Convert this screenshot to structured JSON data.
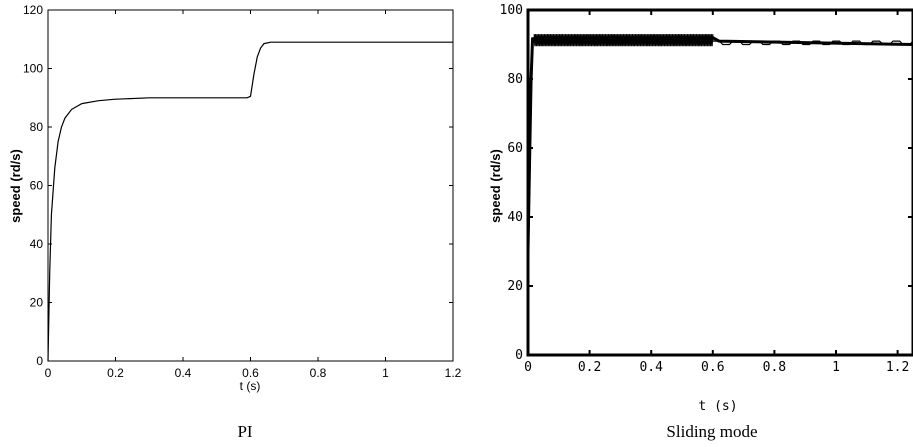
{
  "chart_data": [
    {
      "type": "line",
      "caption": "PI",
      "xlabel": "t (s)",
      "ylabel": "speed (rd/s)",
      "xlim": [
        0,
        1.2
      ],
      "ylim": [
        0,
        120
      ],
      "xticks": [
        "0",
        "0.2",
        "0.4",
        "0.6",
        "0.8",
        "1",
        "1.2"
      ],
      "yticks": [
        "0",
        "20",
        "40",
        "60",
        "80",
        "100",
        "120"
      ],
      "grid": false,
      "series": [
        {
          "x": [
            0,
            0.005,
            0.01,
            0.02,
            0.03,
            0.04,
            0.05,
            0.07,
            0.1,
            0.15,
            0.2,
            0.3,
            0.4,
            0.5,
            0.59,
            0.6,
            0.61,
            0.62,
            0.63,
            0.64,
            0.66,
            0.7,
            0.8,
            1.0,
            1.2
          ],
          "y": [
            0,
            30,
            50,
            66,
            75,
            80,
            83,
            86,
            88,
            89,
            89.5,
            90,
            90,
            90,
            90,
            90.5,
            98,
            104,
            107,
            108.5,
            109,
            109,
            109,
            109,
            109
          ]
        }
      ]
    },
    {
      "type": "line",
      "caption": "Sliding mode",
      "xlabel": "t (s)",
      "ylabel": "speed (rd/s)",
      "xlim": [
        0,
        1.25
      ],
      "ylim": [
        0,
        100
      ],
      "xticks": [
        "0",
        "0.2",
        "0.4",
        "0.6",
        "0.8",
        "1",
        "1.2"
      ],
      "yticks": [
        "0",
        "20",
        "40",
        "60",
        "80",
        "100"
      ],
      "grid": false,
      "series": [
        {
          "x": [
            0,
            0.005,
            0.01,
            0.015,
            0.02,
            0.6,
            0.62,
            1.25
          ],
          "y": [
            30,
            55,
            80,
            92,
            91,
            92,
            91,
            90
          ]
        }
      ]
    }
  ]
}
